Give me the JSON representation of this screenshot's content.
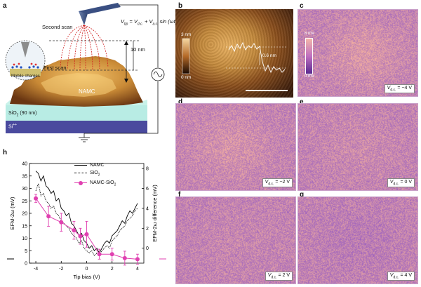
{
  "panel_letters": {
    "a": "a",
    "b": "b",
    "c": "c",
    "d": "d",
    "e": "e",
    "f": "f",
    "g": "g",
    "h": "h"
  },
  "panel_a": {
    "second_scan": "Second scan",
    "first_scan": "First scan",
    "vtip_lhs": "V",
    "vtip_sub": "tip",
    "vtip_rhs": " = V",
    "vdc_sub": "d.c.",
    "vac_mid": " + V",
    "vac_sub": "a.c.",
    "vtip_tail": " sin (ωt)",
    "height": "10 nm",
    "namc": "NAMC",
    "sio2": "SiO",
    "sio2_sub": "2",
    "sio2_tail": " (90 nm)",
    "si": "Si",
    "si_sup": "++",
    "mobile_charges": "Mobile charges"
  },
  "panel_b": {
    "scale_top": "3 nm",
    "scale_bottom": "0 nm",
    "step_label": "0.6 nm"
  },
  "panel_c_scale": {
    "top": "8 mV",
    "bottom": "0 mV"
  },
  "vdc_labels": {
    "c": "= −4 V",
    "d": "= −2 V",
    "e": "= 0 V",
    "f": "= 2 V",
    "g": "= 4 V",
    "v": "V",
    "sub": "d.c."
  },
  "colors": {
    "afm_dark": "#3a1c0c",
    "afm_light": "#e8b060",
    "efm_low": "#9a5fc0",
    "efm_high": "#f4b0a0",
    "magenta": "#e040b0",
    "sio2": "#b8ece4",
    "si": "#4a4a9e"
  },
  "chart_data": {
    "type": "line",
    "title": "",
    "xlabel": "Tip bias (V)",
    "ylabel_left": "EFM-2ω (mV)",
    "ylabel_right": "EFM-2ω difference (mV)",
    "xlim": [
      -4.5,
      4.5
    ],
    "ylim_left": [
      0,
      40
    ],
    "ylim_right": [
      -1.5,
      8.5
    ],
    "xticks": [
      -4,
      -2,
      0,
      2,
      4
    ],
    "yticks_left": [
      0,
      5,
      10,
      15,
      20,
      25,
      30,
      35,
      40
    ],
    "yticks_right": [
      0,
      2,
      4,
      6,
      8
    ],
    "legend": [
      "NAMC",
      "SiO2",
      "NAMC-SiO2"
    ],
    "legend_labels": {
      "namc": "NAMC",
      "sio2": "SiO",
      "sio2_sub": "2",
      "diff": "NAMC-SiO",
      "diff_sub": "2"
    },
    "series": [
      {
        "name": "NAMC",
        "axis": "left",
        "style": "solid",
        "x": [
          -4.0,
          -3.8,
          -3.6,
          -3.4,
          -3.2,
          -3.0,
          -2.8,
          -2.6,
          -2.4,
          -2.2,
          -2.0,
          -1.8,
          -1.6,
          -1.4,
          -1.2,
          -1.0,
          -0.8,
          -0.6,
          -0.4,
          -0.2,
          0.0,
          0.2,
          0.4,
          0.6,
          0.8,
          1.0,
          1.2,
          1.4,
          1.6,
          1.8,
          2.0,
          2.2,
          2.4,
          2.6,
          2.8,
          3.0,
          3.2,
          3.4,
          3.6,
          3.8,
          4.0
        ],
        "y": [
          37,
          36,
          33,
          35,
          31,
          30,
          28,
          29,
          25,
          26,
          22,
          21,
          19,
          20,
          16,
          15,
          13,
          11,
          12,
          9,
          8,
          6,
          7,
          5,
          6,
          4,
          6,
          8,
          9,
          8,
          11,
          12,
          13,
          15,
          17,
          16,
          19,
          21,
          20,
          22,
          24
        ]
      },
      {
        "name": "SiO2",
        "axis": "left",
        "style": "dotted",
        "x": [
          -4.0,
          -3.8,
          -3.6,
          -3.4,
          -3.2,
          -3.0,
          -2.8,
          -2.6,
          -2.4,
          -2.2,
          -2.0,
          -1.8,
          -1.6,
          -1.4,
          -1.2,
          -1.0,
          -0.8,
          -0.6,
          -0.4,
          -0.2,
          0.0,
          0.2,
          0.4,
          0.6,
          0.8,
          1.0,
          1.2,
          1.4,
          1.6,
          1.8,
          2.0,
          2.2,
          2.4,
          2.6,
          2.8,
          3.0,
          3.2,
          3.4,
          3.6,
          3.8,
          4.0
        ],
        "y": [
          29,
          32,
          27,
          28,
          25,
          24,
          22,
          23,
          20,
          19,
          17,
          16,
          15,
          14,
          12,
          11,
          10,
          8,
          9,
          6,
          5,
          4,
          5,
          3,
          4,
          3,
          5,
          6,
          7,
          6,
          9,
          10,
          11,
          13,
          14,
          15,
          17,
          18,
          19,
          21,
          22
        ]
      },
      {
        "name": "NAMC-SiO2",
        "axis": "right",
        "style": "markers",
        "x": [
          -4,
          -3,
          -2,
          -1,
          -0.5,
          0,
          1,
          2,
          3,
          4
        ],
        "y": [
          5.0,
          3.2,
          2.6,
          1.8,
          1.2,
          1.4,
          -0.6,
          -0.6,
          -1.0,
          -1.1
        ],
        "err": [
          0.4,
          1.0,
          0.9,
          0.9,
          0.8,
          1.3,
          0.5,
          0.6,
          0.7,
          0.5
        ]
      }
    ]
  }
}
